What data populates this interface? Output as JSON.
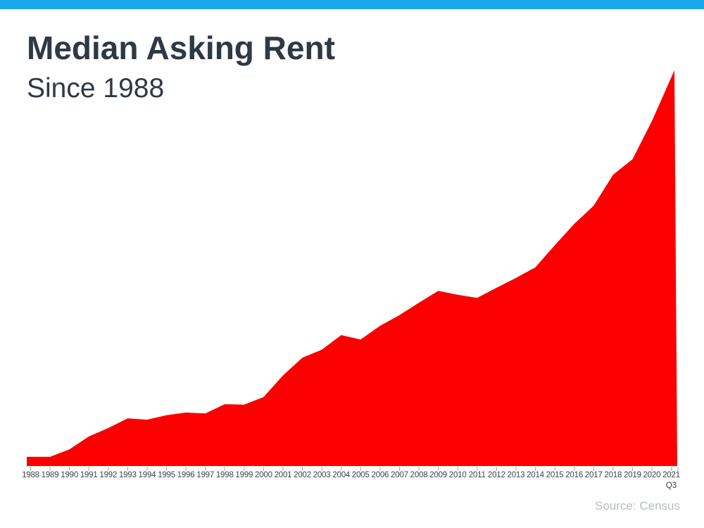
{
  "header": {
    "title": "Median Asking Rent",
    "subtitle": "Since 1988"
  },
  "footer": {
    "source": "Source: Census"
  },
  "theme": {
    "top_bar_color": "#18A7E8",
    "area_color": "#FC0000",
    "title_color": "#2E3945",
    "axis_label_color": "#3A434E",
    "tick_color": "#98A0A8",
    "source_color": "#B6BCC2"
  },
  "chart_data": {
    "type": "area",
    "title": "Median Asking Rent",
    "subtitle": "Since 1988",
    "categories": [
      "1988",
      "1989",
      "1990",
      "1991",
      "1992",
      "1993",
      "1994",
      "1995",
      "1996",
      "1997",
      "1998",
      "1999",
      "2000",
      "2001",
      "2002",
      "2003",
      "2004",
      "2005",
      "2006",
      "2007",
      "2008",
      "2009",
      "2010",
      "2011",
      "2012",
      "2013",
      "2014",
      "2015",
      "2016",
      "2017",
      "2018",
      "2019",
      "2020",
      "2021"
    ],
    "last_point_label": "2021 Q3",
    "x_last_tick_sublabel": "Q3",
    "values": [
      330,
      330,
      347,
      376,
      395,
      417,
      414,
      424,
      430,
      428,
      449,
      448,
      465,
      514,
      554,
      572,
      605,
      595,
      626,
      650,
      678,
      705,
      696,
      689,
      712,
      734,
      758,
      808,
      856,
      897,
      967,
      1002,
      1088,
      1203
    ],
    "values_unit": "estimated USD per month (no y-axis labels shown in figure)",
    "ylim": [
      310,
      1210
    ],
    "xlabel": "",
    "ylabel": "",
    "grid": false,
    "legend": false,
    "y_axis_visible": false,
    "source_note": "Source: Census"
  }
}
